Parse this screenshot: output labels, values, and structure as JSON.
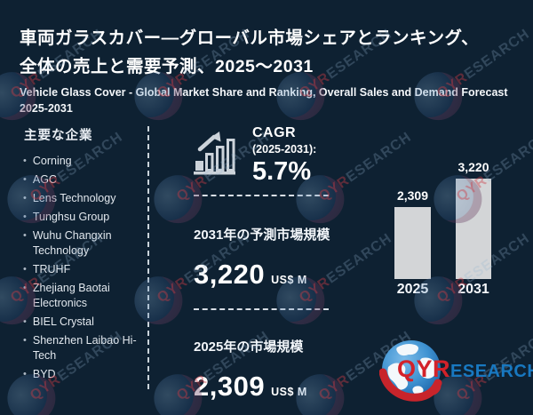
{
  "page": {
    "title_jp_line1": "車両ガラスカバー—グローバル市場シェアとランキング、",
    "title_jp_line2": "全体の売上と需要予測、2025～2031",
    "title_en": "Vehicle Glass Cover - Global Market Share and Ranking, Overall Sales and Demand Forecast 2025-2031"
  },
  "sidebar": {
    "header": "主要な企業",
    "companies": [
      "Corning",
      "AGC",
      "Lens Technology",
      "Tunghsu Group",
      "Wuhu Changxin Technology",
      "TRUHF",
      "Zhejiang Baotai Electronics",
      "BIEL Crystal",
      "Shenzhen Laibao Hi-Tech",
      "BYD"
    ]
  },
  "metrics": {
    "cagr_label": "CAGR",
    "cagr_period": "(2025-2031):",
    "cagr_value": "5.7%",
    "forecast_2031_label": "2031年の予測市場規模",
    "forecast_2031_value": "3,220",
    "forecast_2031_unit": "US$ M",
    "market_2025_label": "2025年の市場規模",
    "market_2025_value": "2,309",
    "market_2025_unit": "US$ M"
  },
  "chart_data": {
    "type": "bar",
    "categories": [
      "2025",
      "2031"
    ],
    "values": [
      2309,
      3220
    ],
    "value_labels": [
      "2,309",
      "3,220"
    ],
    "ylabel": "US$ M",
    "ylim": [
      0,
      3220
    ],
    "bar_color": "#d3d5d7",
    "grid": false,
    "legend": false
  },
  "logo": {
    "part1": "QYR",
    "part2": "ESEARCH"
  },
  "watermark": {
    "part1": "QYR",
    "part2": "ESEARCH"
  },
  "colors": {
    "background": "#0e2132",
    "accent_red": "#d3222a",
    "accent_blue": "#1878c0",
    "bar_fill": "#d3d5d7",
    "text": "#ffffff"
  }
}
